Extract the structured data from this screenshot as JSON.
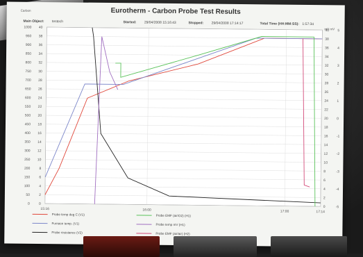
{
  "report": {
    "title": "Eurotherm - Carbon Probe Test Results",
    "object_label": "Main Object:",
    "object_value": "testech",
    "started_label": "Started:",
    "started_value": "29/04/2008 15:16:43",
    "stopped_label": "Stopped:",
    "stopped_value": "29/04/2008 17:14:17",
    "total_label": "Total Time (HH:MM:SS):",
    "total_value": "1:57:34",
    "top_left_label": "Carbon",
    "right_units": "mV  mV"
  },
  "chart_data": {
    "type": "line",
    "x_ticks": [
      "15:16",
      "16:00",
      "17:00",
      "17:14"
    ],
    "y_axis_left_1": [
      "1000",
      "950",
      "900",
      "850",
      "800",
      "750",
      "700",
      "650",
      "600",
      "550",
      "500",
      "450",
      "400",
      "350",
      "300",
      "250",
      "200",
      "150",
      "100",
      "50",
      "0"
    ],
    "y_axis_left_2": [
      "40",
      "38",
      "36",
      "34",
      "32",
      "30",
      "28",
      "26",
      "24",
      "22",
      "20",
      "18",
      "16",
      "14",
      "12",
      "10",
      "8",
      "6",
      "4",
      "2",
      "0"
    ],
    "y_axis_right_1": [
      "40",
      "38",
      "36",
      "34",
      "32",
      "30",
      "28",
      "26",
      "24",
      "22",
      "20",
      "18",
      "16",
      "14",
      "12",
      "10",
      "8",
      "6",
      "4",
      "2",
      "0"
    ],
    "y_axis_right_2": [
      "5",
      "4",
      "3",
      "2",
      "1",
      "0",
      "-1",
      "-2",
      "-3",
      "-4",
      "-5"
    ],
    "series": [
      {
        "name": "Probe temp deg C (V1)",
        "color": "#e0473a",
        "x": [
          0,
          0.05,
          0.15,
          0.3,
          0.55,
          0.79,
          1.0
        ],
        "y": [
          50,
          200,
          600,
          700,
          800,
          950,
          950
        ]
      },
      {
        "name": "Furnace temp. (V1)",
        "color": "#7b86c9",
        "x": [
          0,
          0.14,
          0.28,
          0.76,
          1.0
        ],
        "y": [
          150,
          680,
          680,
          950,
          950
        ]
      },
      {
        "name": "Probe resistance (V2)",
        "color": "#222222",
        "x": [
          0.165,
          0.17,
          0.2,
          0.3,
          0.45,
          1.0
        ],
        "y": [
          1000,
          950,
          400,
          150,
          50,
          20
        ]
      },
      {
        "name": "Probe EMF (air/O2) (H1)",
        "color": "#59c259",
        "x": [
          0.25,
          0.27,
          0.27,
          0.55,
          0.78,
          0.97,
          0.98
        ],
        "y": [
          800,
          800,
          720,
          850,
          960,
          960,
          0
        ]
      },
      {
        "name": "Probe temp mV (H1)",
        "color": "#a06ec0",
        "x": [
          0.18,
          0.2,
          0.23,
          0.26
        ],
        "y": [
          0,
          950,
          750,
          650
        ]
      },
      {
        "name": "Probe EMF (air/air) (H2)",
        "color": "#d34a79",
        "x": [
          0.93,
          0.94,
          0.96
        ],
        "y": [
          950,
          120,
          110
        ]
      }
    ]
  },
  "legend": [
    "Probe temp deg C (V1)",
    "Probe EMF (air/O2) (H1)",
    "Furnace temp. (V1)",
    "Probe temp mV (H1)",
    "Probe resistance (V2)",
    "Probe EMF (air/air) (H2)"
  ],
  "colors": {
    "red": "#e0473a",
    "blue": "#7b86c9",
    "black": "#222222",
    "green": "#59c259",
    "purple": "#a06ec0",
    "pink": "#d34a79"
  }
}
